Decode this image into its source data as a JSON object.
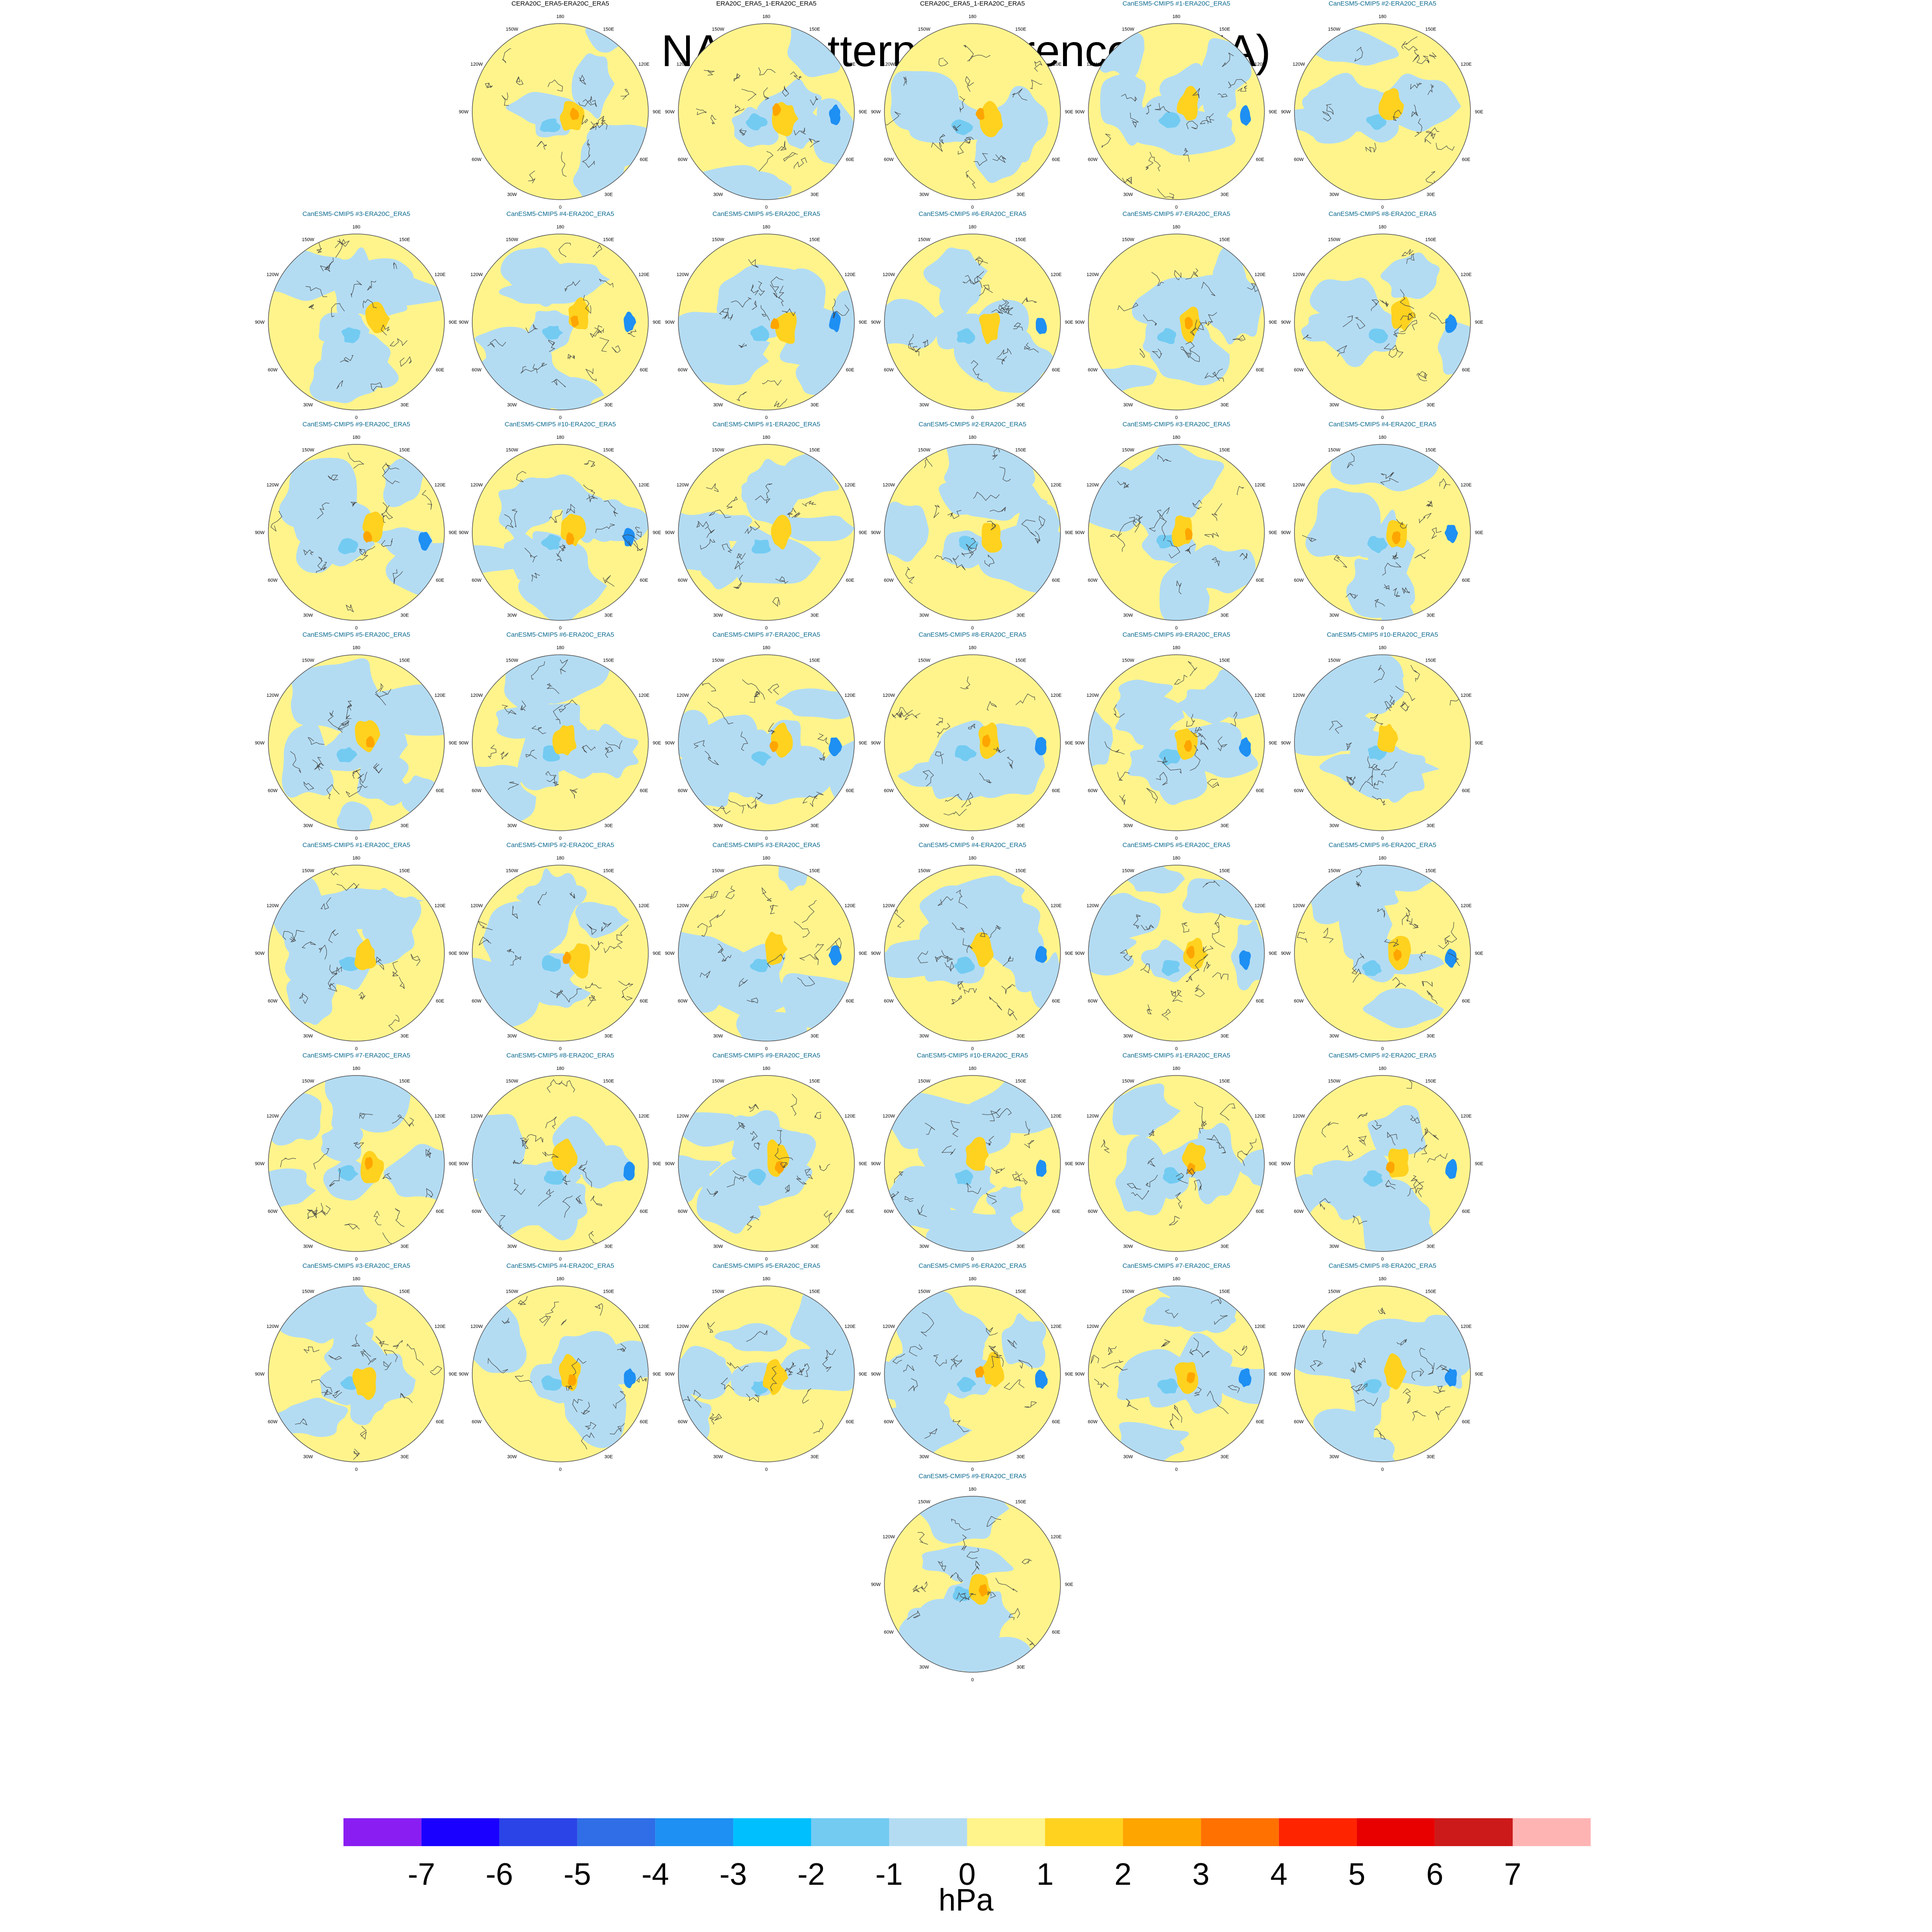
{
  "title": "NAM Pattern Differences (JJA)",
  "units": "hPa",
  "colors": {
    "negative": "#b3dcf3",
    "positive": "#fff48c",
    "circle_border": "#555555",
    "coast": "#444444",
    "title_black": "#000000",
    "title_teal": "#0b6a8f"
  },
  "longitude_labels": [
    "180",
    "150E",
    "120E",
    "90E",
    "60E",
    "30E",
    "0",
    "30W",
    "60W",
    "90W",
    "120W",
    "150W"
  ],
  "panels": [
    {
      "label": "CERA20C_ERA5-ERA20C_ERA5",
      "color": "black"
    },
    {
      "label": "ERA20C_ERA5_1-ERA20C_ERA5",
      "color": "black"
    },
    {
      "label": "CERA20C_ERA5_1-ERA20C_ERA5",
      "color": "black"
    },
    {
      "label": "CanESM5-CMIP5 #1-ERA20C_ERA5",
      "color": "teal"
    },
    {
      "label": "CanESM5-CMIP5 #2-ERA20C_ERA5",
      "color": "teal"
    },
    {
      "label": "CanESM5-CMIP5 #3-ERA20C_ERA5",
      "color": "teal"
    },
    {
      "label": "CanESM5-CMIP5 #4-ERA20C_ERA5",
      "color": "teal"
    },
    {
      "label": "CanESM5-CMIP5 #5-ERA20C_ERA5",
      "color": "teal"
    },
    {
      "label": "CanESM5-CMIP5 #6-ERA20C_ERA5",
      "color": "teal"
    },
    {
      "label": "CanESM5-CMIP5 #7-ERA20C_ERA5",
      "color": "teal"
    },
    {
      "label": "CanESM5-CMIP5 #8-ERA20C_ERA5",
      "color": "teal"
    },
    {
      "label": "CanESM5-CMIP5 #9-ERA20C_ERA5",
      "color": "teal"
    },
    {
      "label": "CanESM5-CMIP5 #10-ERA20C_ERA5",
      "color": "teal"
    },
    {
      "label": "CanESM5-CMIP5 #1-ERA20C_ERA5",
      "color": "teal"
    },
    {
      "label": "CanESM5-CMIP5 #2-ERA20C_ERA5",
      "color": "teal"
    },
    {
      "label": "CanESM5-CMIP5 #3-ERA20C_ERA5",
      "color": "teal"
    },
    {
      "label": "CanESM5-CMIP5 #4-ERA20C_ERA5",
      "color": "teal"
    },
    {
      "label": "CanESM5-CMIP5 #5-ERA20C_ERA5",
      "color": "teal"
    },
    {
      "label": "CanESM5-CMIP5 #6-ERA20C_ERA5",
      "color": "teal"
    },
    {
      "label": "CanESM5-CMIP5 #7-ERA20C_ERA5",
      "color": "teal"
    },
    {
      "label": "CanESM5-CMIP5 #8-ERA20C_ERA5",
      "color": "teal"
    },
    {
      "label": "CanESM5-CMIP5 #9-ERA20C_ERA5",
      "color": "teal"
    },
    {
      "label": "CanESM5-CMIP5 #10-ERA20C_ERA5",
      "color": "teal"
    },
    {
      "label": "CanESM5-CMIP5 #1-ERA20C_ERA5",
      "color": "teal"
    },
    {
      "label": "CanESM5-CMIP5 #2-ERA20C_ERA5",
      "color": "teal"
    },
    {
      "label": "CanESM5-CMIP5 #3-ERA20C_ERA5",
      "color": "teal"
    },
    {
      "label": "CanESM5-CMIP5 #4-ERA20C_ERA5",
      "color": "teal"
    },
    {
      "label": "CanESM5-CMIP5 #5-ERA20C_ERA5",
      "color": "teal"
    },
    {
      "label": "CanESM5-CMIP5 #6-ERA20C_ERA5",
      "color": "teal"
    },
    {
      "label": "CanESM5-CMIP5 #7-ERA20C_ERA5",
      "color": "teal"
    },
    {
      "label": "CanESM5-CMIP5 #8-ERA20C_ERA5",
      "color": "teal"
    },
    {
      "label": "CanESM5-CMIP5 #9-ERA20C_ERA5",
      "color": "teal"
    },
    {
      "label": "CanESM5-CMIP5 #10-ERA20C_ERA5",
      "color": "teal"
    },
    {
      "label": "CanESM5-CMIP5 #1-ERA20C_ERA5",
      "color": "teal"
    },
    {
      "label": "CanESM5-CMIP5 #2-ERA20C_ERA5",
      "color": "teal"
    },
    {
      "label": "CanESM5-CMIP5 #3-ERA20C_ERA5",
      "color": "teal"
    },
    {
      "label": "CanESM5-CMIP5 #4-ERA20C_ERA5",
      "color": "teal"
    },
    {
      "label": "CanESM5-CMIP5 #5-ERA20C_ERA5",
      "color": "teal"
    },
    {
      "label": "CanESM5-CMIP5 #6-ERA20C_ERA5",
      "color": "teal"
    },
    {
      "label": "CanESM5-CMIP5 #7-ERA20C_ERA5",
      "color": "teal"
    },
    {
      "label": "CanESM5-CMIP5 #8-ERA20C_ERA5",
      "color": "teal"
    },
    {
      "label": "CanESM5-CMIP5 #9-ERA20C_ERA5",
      "color": "teal"
    }
  ],
  "chart_data": {
    "type": "heatmap",
    "title": "NAM Pattern Differences (JJA)",
    "projection": "north polar stereographic",
    "panel_count": 42,
    "colorbar": {
      "units": "hPa",
      "tick_labels": [
        "-7",
        "-6",
        "-5",
        "-4",
        "-3",
        "-2",
        "-1",
        "0",
        "1",
        "2",
        "3",
        "4",
        "5",
        "6",
        "7"
      ],
      "levels": [
        -7,
        -6,
        -5,
        -4,
        -3,
        -2,
        -1,
        0,
        1,
        2,
        3,
        4,
        5,
        6,
        7
      ],
      "colors": [
        "#8a1ef2",
        "#1a00ff",
        "#2a44e8",
        "#2f6ee6",
        "#1e8ff3",
        "#00bfff",
        "#73cbf2",
        "#b3dcf3",
        "#fff48c",
        "#ffd21f",
        "#ffa500",
        "#ff7100",
        "#ff2400",
        "#e80000",
        "#cc1a1a",
        "#ffb4b4"
      ]
    }
  }
}
